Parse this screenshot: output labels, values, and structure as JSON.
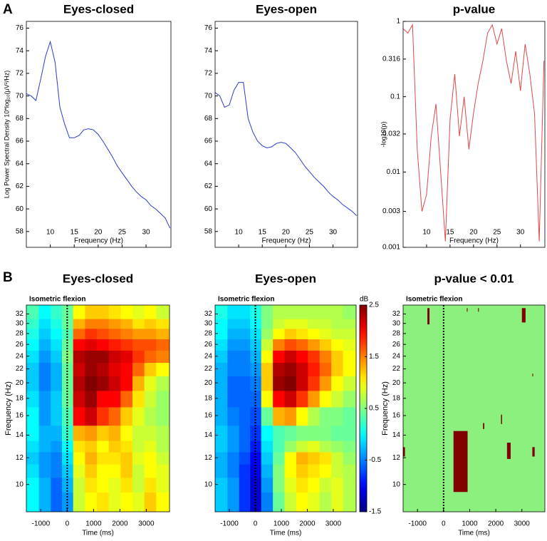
{
  "panels": [
    "A",
    "B"
  ],
  "chart_data": [
    {
      "type": "line",
      "title": "Eyes-closed",
      "xlabel": "Frequency (Hz)",
      "ylabel": "Log Power Spectral Density 10*log₁₀(μV²/Hz)",
      "x": [
        5,
        6,
        7,
        8,
        9,
        10,
        11,
        12,
        13,
        14,
        15,
        16,
        17,
        18,
        19,
        20,
        21,
        22,
        23,
        24,
        25,
        26,
        27,
        28,
        29,
        30,
        31,
        32,
        33,
        34,
        35
      ],
      "values": [
        70.2,
        70,
        69.6,
        71.5,
        73.5,
        74.8,
        73,
        69,
        67.5,
        66.3,
        66.3,
        66.5,
        67,
        67.1,
        67,
        66.6,
        66,
        65.3,
        64.6,
        63.8,
        63.2,
        62.6,
        62,
        61.5,
        61.1,
        60.8,
        60.3,
        60,
        59.6,
        59.2,
        58.3
      ],
      "color": "#2a3ccc",
      "xlim": [
        5,
        35.2
      ],
      "ylim": [
        56.6,
        76.6
      ],
      "xticks": [
        10,
        15,
        20,
        25,
        30
      ],
      "yticks": [
        58,
        60,
        62,
        64,
        66,
        68,
        70,
        72,
        74,
        76
      ]
    },
    {
      "type": "line",
      "title": "Eyes-open",
      "xlabel": "Frequency (Hz)",
      "x": [
        5,
        6,
        7,
        8,
        9,
        10,
        11,
        12,
        13,
        14,
        15,
        16,
        17,
        18,
        19,
        20,
        21,
        22,
        23,
        24,
        25,
        26,
        27,
        28,
        29,
        30,
        31,
        32,
        33,
        34,
        35
      ],
      "values": [
        70.3,
        70,
        69,
        69.2,
        70.5,
        71.2,
        71.2,
        68,
        66.8,
        66,
        65.6,
        65.4,
        65.5,
        65.8,
        65.9,
        65.8,
        65.4,
        65,
        64.4,
        63.8,
        63.3,
        62.8,
        62.4,
        62,
        61.5,
        61.1,
        60.8,
        60.4,
        60.1,
        59.8,
        59.4
      ],
      "color": "#2a3ccc",
      "xlim": [
        5,
        35.2
      ],
      "ylim": [
        56.6,
        76.6
      ],
      "xticks": [
        10,
        15,
        20,
        25,
        30
      ],
      "yticks": [
        58,
        60,
        62,
        64,
        66,
        68,
        70,
        72,
        74,
        76
      ]
    },
    {
      "type": "line",
      "title": "p-value",
      "xlabel": "Frequency (Hz)",
      "ylabel": "-log10(p)",
      "ylog": true,
      "x": [
        5,
        6,
        7,
        8,
        9,
        10,
        11,
        12,
        13,
        14,
        15,
        16,
        17,
        18,
        19,
        20,
        21,
        22,
        23,
        24,
        25,
        26,
        27,
        28,
        29,
        30,
        31,
        32,
        33,
        34,
        35
      ],
      "values": [
        0.8,
        0.7,
        0.9,
        0.02,
        0.003,
        0.005,
        0.03,
        0.08,
        0.01,
        0.0012,
        0.05,
        0.2,
        0.03,
        0.1,
        0.02,
        0.06,
        0.15,
        0.3,
        0.7,
        0.9,
        0.5,
        0.8,
        0.3,
        0.15,
        0.4,
        0.12,
        0.5,
        0.2,
        0.06,
        0.0012,
        0.3
      ],
      "color": "#e04848",
      "xlim": [
        5,
        35.2
      ],
      "ylim": [
        0.001,
        1
      ],
      "xticks": [
        10,
        15,
        20,
        25,
        30
      ],
      "yticks": [
        0.001,
        0.003,
        0.01,
        0.032,
        0.1,
        0.316,
        1
      ]
    },
    {
      "type": "heatmap",
      "title": "Eyes-closed",
      "annotation": "Isometric flexion",
      "xlabel": "Time (ms)",
      "ylabel": "Frequency (Hz)",
      "ylog": true,
      "event": 0,
      "colormap": "jet",
      "clim": [
        -1.5,
        2.5
      ],
      "xlim": [
        -1550,
        3880
      ],
      "ylim": [
        8.3,
        34
      ],
      "xticks": [
        -1000,
        0,
        1000,
        2000,
        3000
      ],
      "yticks": [
        10,
        12,
        14,
        16,
        18,
        20,
        22,
        24,
        26,
        28,
        30,
        32
      ],
      "x": [
        -1300,
        -850,
        -400,
        0,
        450,
        900,
        1350,
        1800,
        2250,
        2700,
        3150,
        3600
      ],
      "y": [
        9,
        10,
        11,
        12,
        13,
        14,
        16,
        18,
        20,
        22,
        24,
        26,
        28,
        30,
        32
      ],
      "values": [
        [
          0.0,
          -0.3,
          -0.6,
          -0.4,
          0.8,
          1.0,
          1.1,
          0.9,
          1.0,
          0.9,
          1.2,
          1.0
        ],
        [
          0.0,
          -0.3,
          -0.6,
          -0.3,
          0.8,
          1.1,
          1.0,
          0.9,
          1.1,
          0.8,
          1.1,
          0.9
        ],
        [
          -0.1,
          -0.4,
          -0.5,
          -0.2,
          0.9,
          1.2,
          1.0,
          1.0,
          1.2,
          0.8,
          1.0,
          0.9
        ],
        [
          -0.2,
          -0.4,
          -0.5,
          -0.1,
          1.0,
          1.3,
          1.1,
          1.1,
          1.2,
          0.9,
          1.0,
          0.8
        ],
        [
          -0.1,
          -0.3,
          -0.4,
          0.0,
          1.1,
          1.2,
          1.0,
          1.2,
          1.1,
          0.8,
          0.9,
          0.7
        ],
        [
          0.0,
          -0.3,
          -0.3,
          0.2,
          1.3,
          1.4,
          1.2,
          1.3,
          1.0,
          0.8,
          0.8,
          0.7
        ],
        [
          0.0,
          -0.4,
          -0.2,
          0.3,
          2.0,
          2.2,
          1.8,
          1.6,
          1.2,
          0.9,
          0.7,
          0.6
        ],
        [
          -0.1,
          -0.4,
          -0.2,
          0.4,
          2.2,
          2.4,
          2.0,
          2.0,
          1.6,
          1.1,
          0.8,
          0.6
        ],
        [
          -0.2,
          -0.5,
          -0.3,
          0.4,
          2.3,
          2.5,
          2.4,
          2.2,
          2.0,
          1.3,
          0.9,
          0.7
        ],
        [
          -0.2,
          -0.5,
          -0.3,
          0.4,
          2.2,
          2.4,
          2.3,
          2.1,
          2.0,
          1.6,
          1.2,
          1.0
        ],
        [
          -0.1,
          -0.4,
          -0.2,
          0.5,
          2.3,
          2.4,
          2.4,
          2.2,
          2.1,
          1.8,
          1.6,
          1.5
        ],
        [
          0.0,
          -0.3,
          -0.1,
          0.4,
          2.0,
          2.1,
          2.0,
          1.9,
          1.8,
          1.7,
          1.7,
          1.6
        ],
        [
          0.1,
          -0.2,
          0.0,
          0.3,
          1.6,
          1.8,
          1.7,
          1.6,
          1.5,
          1.4,
          1.4,
          1.3
        ],
        [
          0.2,
          -0.1,
          0.1,
          0.4,
          1.3,
          1.5,
          1.5,
          1.4,
          1.3,
          1.1,
          1.2,
          1.1
        ],
        [
          0.3,
          0.0,
          0.2,
          0.4,
          1.0,
          1.2,
          1.2,
          1.1,
          1.0,
          0.9,
          1.0,
          0.8
        ]
      ]
    },
    {
      "type": "heatmap",
      "title": "Eyes-open",
      "annotation": "Isometric flexion",
      "xlabel": "Time (ms)",
      "ylog": true,
      "event": 0,
      "colormap": "jet",
      "clim": [
        -1.5,
        2.5
      ],
      "cticks": [
        -1.5,
        -0.5,
        0.5,
        1.5,
        2.5
      ],
      "clabel": "dB",
      "xlim": [
        -1550,
        3880
      ],
      "ylim": [
        8.3,
        34
      ],
      "xticks": [
        -1000,
        0,
        1000,
        2000,
        3000
      ],
      "yticks": [
        10,
        12,
        14,
        16,
        18,
        20,
        22,
        24,
        26,
        28,
        30,
        32
      ],
      "x": [
        -1300,
        -850,
        -400,
        0,
        450,
        900,
        1350,
        1800,
        2250,
        2700,
        3150,
        3600
      ],
      "y": [
        9,
        10,
        11,
        12,
        13,
        14,
        16,
        18,
        20,
        22,
        24,
        26,
        28,
        30,
        32
      ],
      "values": [
        [
          -0.2,
          -0.4,
          -0.8,
          -1.2,
          -0.5,
          0.4,
          0.8,
          1.0,
          0.9,
          0.7,
          0.9,
          0.7
        ],
        [
          -0.2,
          -0.4,
          -0.8,
          -1.2,
          -0.4,
          0.5,
          0.9,
          1.1,
          1.0,
          0.8,
          0.9,
          0.7
        ],
        [
          -0.3,
          -0.5,
          -0.8,
          -1.1,
          -0.3,
          0.5,
          1.0,
          1.2,
          1.1,
          1.0,
          0.8,
          0.7
        ],
        [
          -0.3,
          -0.5,
          -0.7,
          -1.0,
          -0.2,
          0.4,
          1.0,
          1.3,
          1.2,
          1.1,
          0.8,
          0.6
        ],
        [
          -0.2,
          -0.4,
          -0.6,
          -0.9,
          -0.1,
          0.3,
          0.6,
          0.8,
          0.9,
          0.7,
          0.6,
          0.5
        ],
        [
          -0.2,
          -0.4,
          -0.6,
          -0.8,
          0.0,
          0.3,
          0.4,
          0.5,
          0.5,
          0.5,
          0.4,
          0.4
        ],
        [
          -0.3,
          -0.5,
          -0.6,
          -0.7,
          0.4,
          1.3,
          1.4,
          1.0,
          0.7,
          0.5,
          0.5,
          0.4
        ],
        [
          -0.3,
          -0.6,
          -0.6,
          -0.6,
          1.0,
          2.0,
          2.2,
          1.8,
          1.4,
          1.0,
          0.8,
          0.6
        ],
        [
          -0.3,
          -0.6,
          -0.6,
          -0.5,
          1.2,
          2.4,
          2.5,
          2.2,
          1.8,
          1.4,
          1.0,
          0.8
        ],
        [
          -0.3,
          -0.5,
          -0.5,
          -0.4,
          1.2,
          2.3,
          2.4,
          2.2,
          1.9,
          1.6,
          1.2,
          1.0
        ],
        [
          -0.2,
          -0.5,
          -0.5,
          -0.3,
          1.0,
          2.0,
          2.2,
          2.0,
          1.8,
          1.5,
          1.2,
          1.0
        ],
        [
          -0.1,
          -0.4,
          -0.4,
          -0.2,
          0.8,
          1.5,
          1.7,
          1.6,
          1.4,
          1.2,
          1.0,
          0.9
        ],
        [
          0.0,
          -0.3,
          -0.3,
          -0.1,
          0.6,
          1.0,
          1.2,
          1.1,
          1.0,
          0.9,
          0.8,
          0.8
        ],
        [
          0.0,
          -0.2,
          -0.2,
          0.0,
          0.5,
          0.8,
          0.9,
          0.9,
          0.8,
          0.8,
          0.7,
          0.7
        ],
        [
          0.1,
          -0.1,
          -0.1,
          0.1,
          0.5,
          0.7,
          0.7,
          0.7,
          0.7,
          0.7,
          0.7,
          0.6
        ]
      ]
    },
    {
      "type": "mask",
      "title": "p-value < 0.01",
      "annotation": "Isometric flexion",
      "xlabel": "Time (ms)",
      "ylabel": "Frequency (Hz)",
      "ylog": true,
      "event": 0,
      "background": "#8cf07e",
      "color": "#800000",
      "xlim": [
        -1550,
        3880
      ],
      "ylim": [
        8.3,
        34
      ],
      "xticks": [
        -1000,
        0,
        1000,
        2000,
        3000
      ],
      "yticks": [
        10,
        12,
        14,
        16,
        18,
        20,
        22,
        24,
        26,
        28,
        30,
        32
      ],
      "regions": [
        [
          380,
          920,
          9.5,
          14.4
        ],
        [
          -620,
          -540,
          29.8,
          33.3
        ],
        [
          -1550,
          -1480,
          12.1,
          12.9
        ],
        [
          2430,
          2570,
          11.9,
          13.3
        ],
        [
          3000,
          3140,
          30.2,
          33.3
        ],
        [
          3400,
          3490,
          12.1,
          12.9
        ],
        [
          1510,
          1560,
          14.6,
          15.2
        ],
        [
          2200,
          2240,
          15.1,
          16.1
        ],
        [
          890,
          920,
          32.5,
          33.3
        ],
        [
          1320,
          1350,
          32.5,
          33.3
        ],
        [
          3400,
          3430,
          20.9,
          21.3
        ]
      ]
    }
  ]
}
